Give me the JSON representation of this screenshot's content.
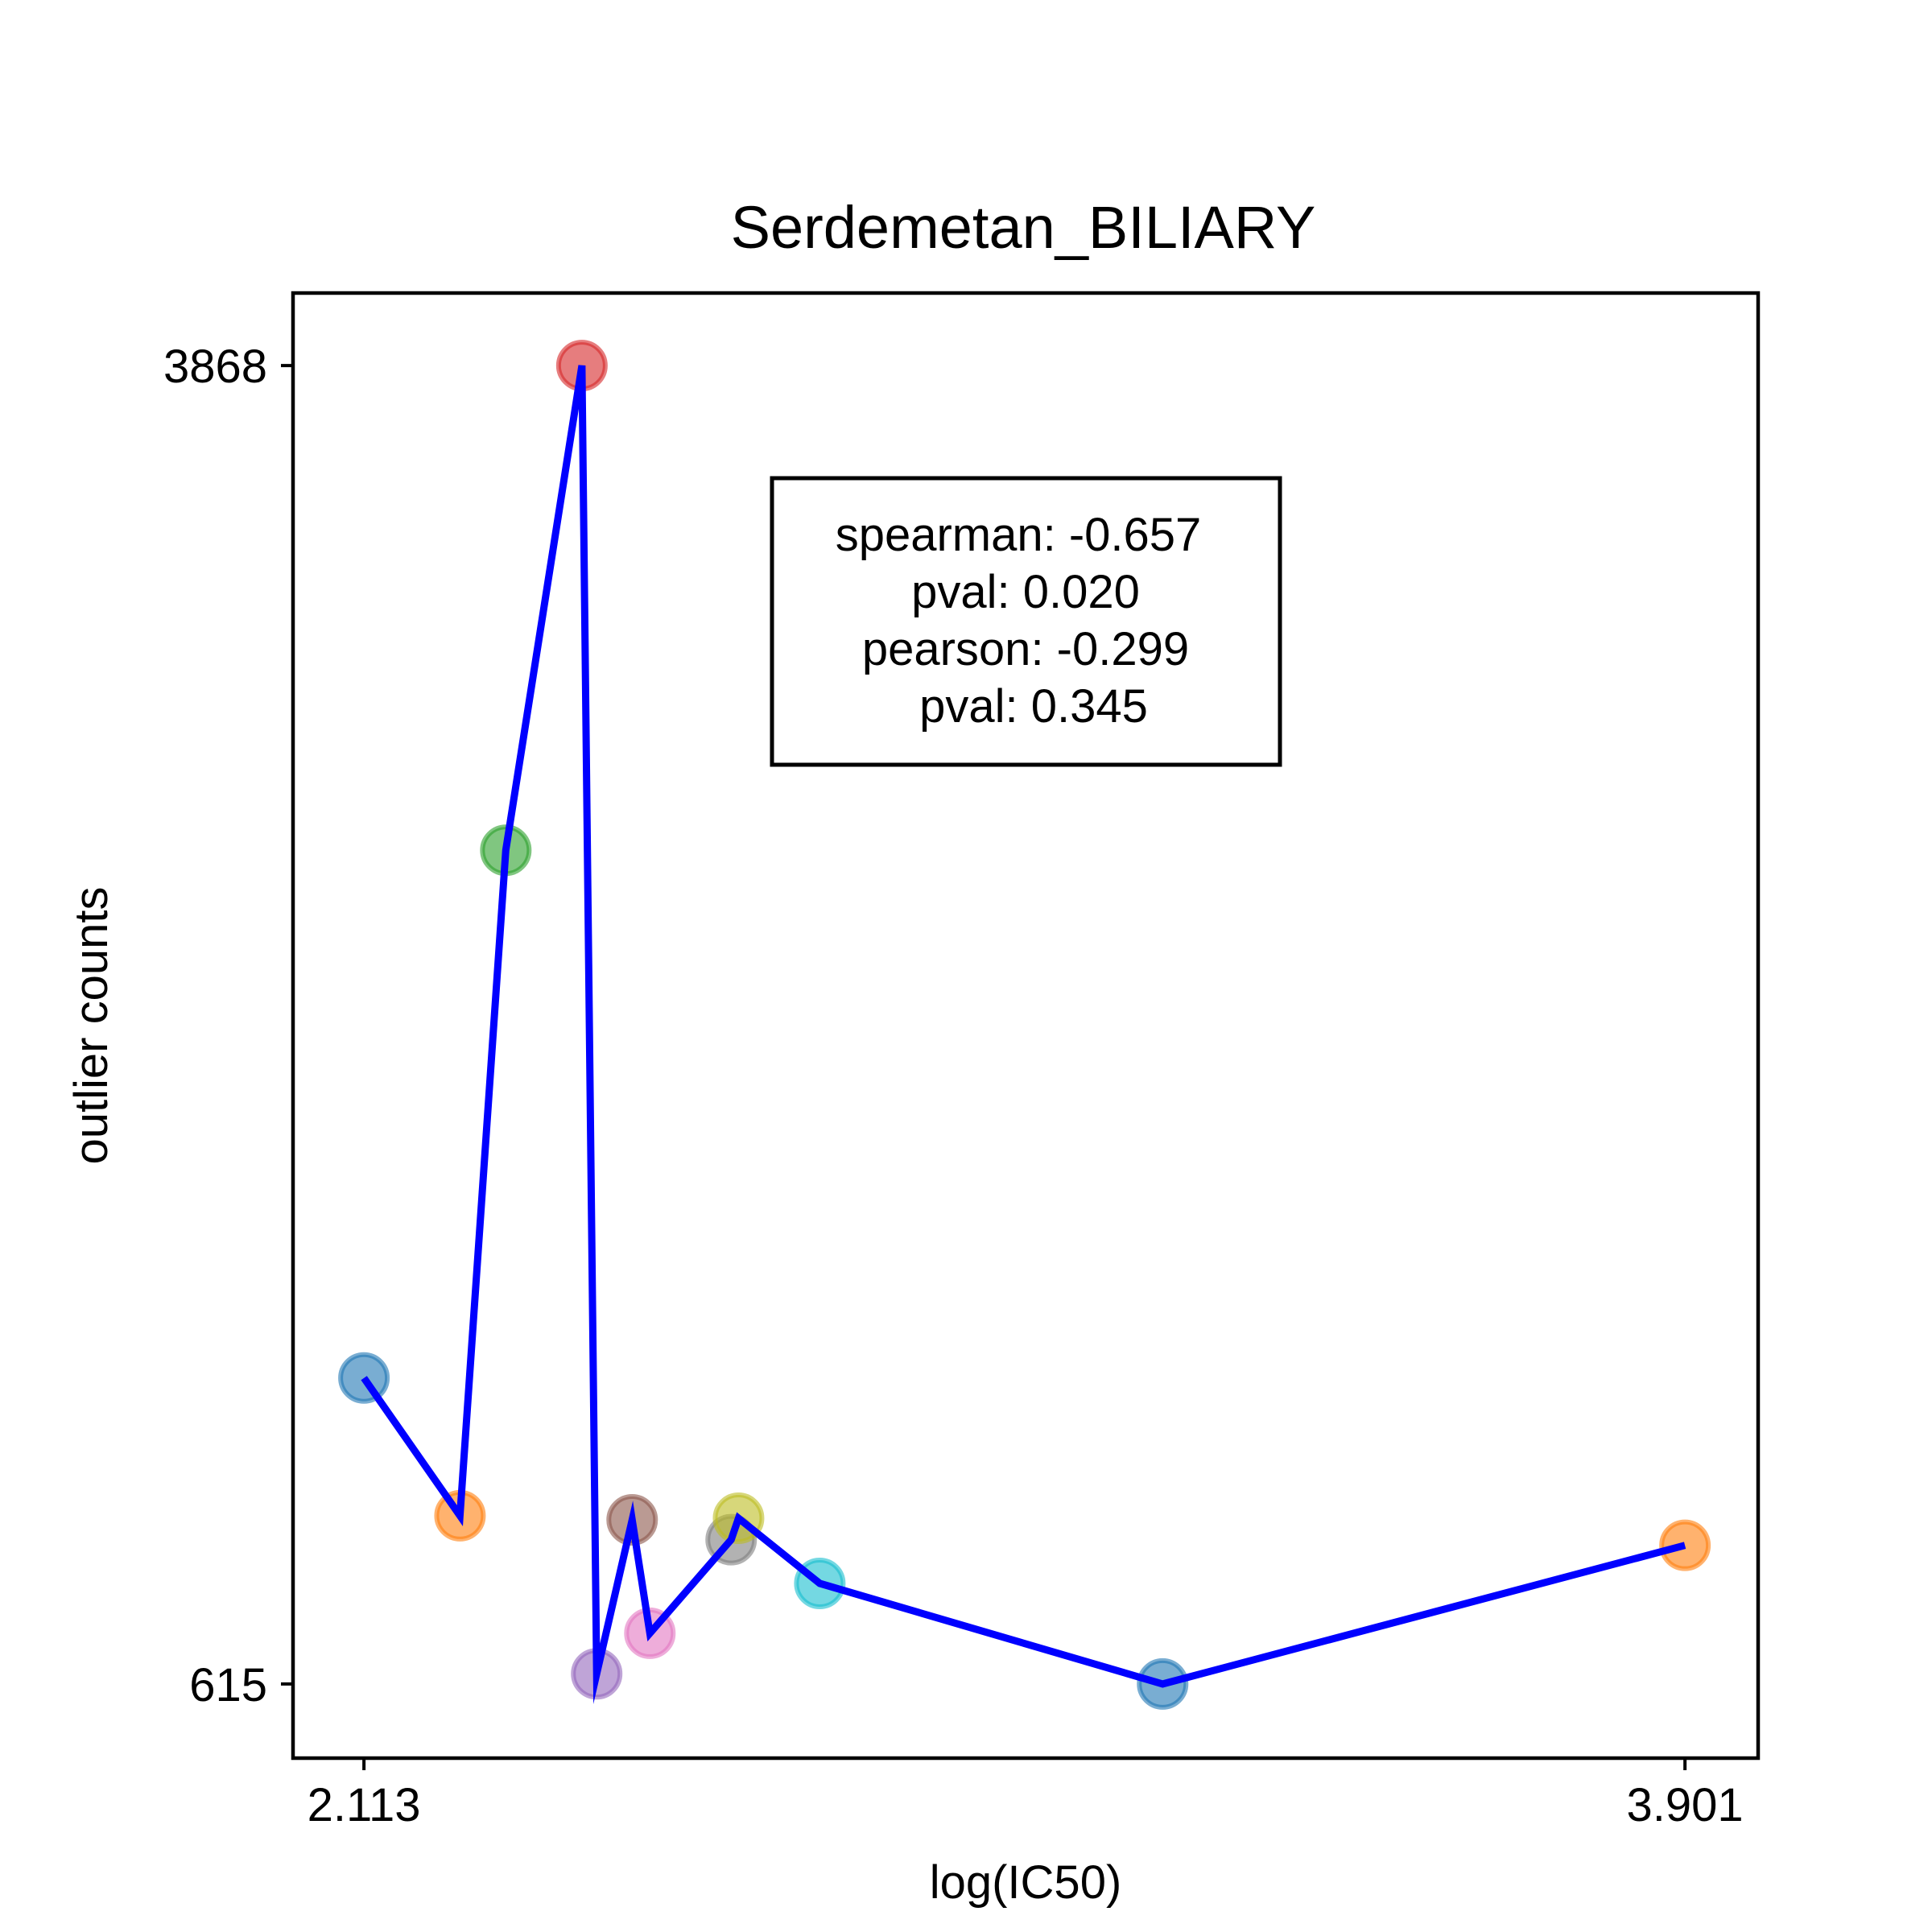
{
  "chart_data": {
    "type": "scatter",
    "title": "Serdemetan_BILIARY",
    "xlabel": "log(IC50)",
    "ylabel": "outlier counts",
    "x_ticks": [
      {
        "value": 2.113,
        "label": "2.113"
      },
      {
        "value": 3.901,
        "label": "3.901"
      }
    ],
    "y_ticks": [
      {
        "value": 615,
        "label": "615"
      },
      {
        "value": 3868,
        "label": "3868"
      }
    ],
    "xlim": [
      2.017,
      4.0
    ],
    "ylim": [
      432,
      4047
    ],
    "grid": false,
    "line_color": "#0000ff",
    "points": [
      {
        "x": 2.113,
        "y": 1370,
        "color": "#1f77b4"
      },
      {
        "x": 2.243,
        "y": 1030,
        "color": "#ff7f0e"
      },
      {
        "x": 2.305,
        "y": 2672,
        "color": "#2ca02c"
      },
      {
        "x": 2.408,
        "y": 3868,
        "color": "#d62728"
      },
      {
        "x": 2.428,
        "y": 640,
        "color": "#9467bd"
      },
      {
        "x": 2.476,
        "y": 1020,
        "color": "#8c564b"
      },
      {
        "x": 2.5,
        "y": 740,
        "color": "#e377c2"
      },
      {
        "x": 2.61,
        "y": 971,
        "color": "#7f7f7f"
      },
      {
        "x": 2.62,
        "y": 1024,
        "color": "#bcbd22"
      },
      {
        "x": 2.73,
        "y": 863,
        "color": "#17becf"
      },
      {
        "x": 3.194,
        "y": 615,
        "color": "#1f77b4"
      },
      {
        "x": 3.901,
        "y": 957,
        "color": "#ff7f0e"
      }
    ],
    "stats_box": {
      "lines": [
        "spearman: -0.657",
        "pval: 0.020",
        "pearson: -0.299",
        "pval: 0.345"
      ]
    }
  }
}
